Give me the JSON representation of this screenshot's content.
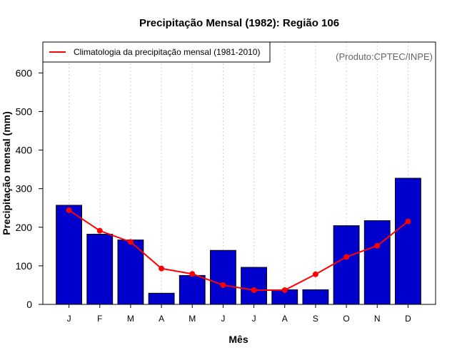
{
  "chart_data": {
    "type": "bar",
    "title": "Precipitação Mensal (1982): Região 106",
    "xlabel": "Mês",
    "ylabel": "Precipitação mensal (mm)",
    "credit": "(Produto:CPTEC/INPE)",
    "categories": [
      "J",
      "F",
      "M",
      "A",
      "M",
      "J",
      "J",
      "A",
      "S",
      "O",
      "N",
      "D"
    ],
    "ylim": [
      0,
      680
    ],
    "yticks": [
      0,
      100,
      200,
      300,
      400,
      500,
      600
    ],
    "grid": "vertical dotted",
    "legend_position": "top-left",
    "series": [
      {
        "name": "Precipitação mensal (1982)",
        "kind": "bar",
        "color": "#0000cd",
        "values": [
          257,
          182,
          167,
          29,
          75,
          140,
          96,
          38,
          38,
          204,
          217,
          327
        ]
      },
      {
        "name": "Climatologia da precipitação mensal (1981-2010)",
        "kind": "line",
        "color": "#ff0000",
        "values": [
          244,
          191,
          162,
          93,
          79,
          50,
          37,
          37,
          78,
          123,
          152,
          215
        ]
      }
    ]
  }
}
